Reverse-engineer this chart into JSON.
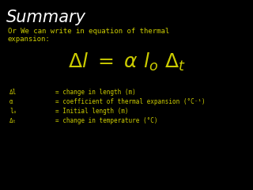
{
  "bg_color": "#000000",
  "title": "Summary",
  "title_color": "#ffffff",
  "title_fontsize": 15,
  "body_color": "#cccc00",
  "intro_line1": "Or We can write in equation of thermal",
  "intro_line2": "expansion:",
  "intro_fontsize": 6.5,
  "eq_fontsize": 18,
  "def_fontsize": 5.5,
  "definitions": [
    [
      "Δl",
      "= change in length (m)"
    ],
    [
      "α",
      "= coefficient of thermal expansion (°C⁻¹)"
    ],
    [
      "lₒ",
      "= Initial length (m)"
    ],
    [
      "Δₜ",
      "= change in temperature (°C)"
    ]
  ]
}
